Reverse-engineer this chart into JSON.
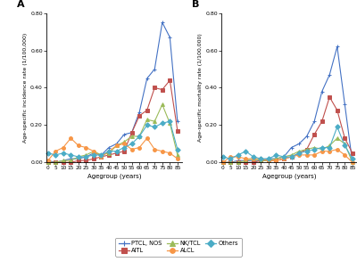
{
  "age_groups": [
    0,
    5,
    10,
    15,
    20,
    25,
    30,
    35,
    40,
    45,
    50,
    55,
    60,
    65,
    70,
    75,
    80,
    85
  ],
  "panel_A": {
    "title": "A",
    "ylabel": "Age-specific incidence rate (1/100,000)",
    "xlabel": "Agegroup (years)",
    "ylim": [
      0,
      0.8
    ],
    "yticks": [
      0.0,
      0.2,
      0.4,
      0.6,
      0.8
    ],
    "PTCL_NOS": [
      0.01,
      0.0,
      0.01,
      0.02,
      0.02,
      0.03,
      0.05,
      0.04,
      0.08,
      0.1,
      0.15,
      0.16,
      0.27,
      0.45,
      0.5,
      0.75,
      0.67,
      0.22
    ],
    "AITL": [
      0.0,
      0.0,
      0.0,
      0.0,
      0.01,
      0.01,
      0.02,
      0.03,
      0.04,
      0.05,
      0.06,
      0.16,
      0.25,
      0.28,
      0.4,
      0.39,
      0.44,
      0.17
    ],
    "NK_TCL": [
      0.0,
      0.0,
      0.01,
      0.01,
      0.03,
      0.04,
      0.06,
      0.04,
      0.05,
      0.09,
      0.11,
      0.14,
      0.14,
      0.23,
      0.22,
      0.31,
      0.21,
      0.04
    ],
    "ALCL": [
      0.01,
      0.06,
      0.08,
      0.13,
      0.09,
      0.08,
      0.06,
      0.03,
      0.06,
      0.09,
      0.1,
      0.07,
      0.08,
      0.13,
      0.07,
      0.06,
      0.05,
      0.02
    ],
    "Others": [
      0.05,
      0.04,
      0.05,
      0.04,
      0.03,
      0.03,
      0.04,
      0.04,
      0.06,
      0.06,
      0.08,
      0.1,
      0.14,
      0.2,
      0.19,
      0.21,
      0.22,
      0.07
    ]
  },
  "panel_B": {
    "title": "B",
    "ylabel": "Age-specific mortality rate (1/100,000)",
    "xlabel": "Agegroup (years)",
    "ylim": [
      0,
      0.8
    ],
    "yticks": [
      0.0,
      0.2,
      0.4,
      0.6,
      0.8
    ],
    "PTCL_NOS": [
      0.0,
      0.0,
      0.01,
      0.01,
      0.01,
      0.01,
      0.02,
      0.02,
      0.03,
      0.08,
      0.1,
      0.14,
      0.22,
      0.38,
      0.47,
      0.62,
      0.31,
      0.0
    ],
    "AITL": [
      0.0,
      0.0,
      0.0,
      0.0,
      0.0,
      0.01,
      0.01,
      0.01,
      0.02,
      0.03,
      0.05,
      0.07,
      0.15,
      0.22,
      0.35,
      0.28,
      0.13,
      0.05
    ],
    "NK_TCL": [
      0.0,
      0.0,
      0.0,
      0.01,
      0.02,
      0.01,
      0.01,
      0.02,
      0.03,
      0.04,
      0.06,
      0.07,
      0.08,
      0.07,
      0.09,
      0.13,
      0.1,
      0.0
    ],
    "ALCL": [
      0.0,
      0.03,
      0.03,
      0.02,
      0.02,
      0.02,
      0.01,
      0.01,
      0.02,
      0.03,
      0.04,
      0.04,
      0.04,
      0.06,
      0.06,
      0.07,
      0.04,
      0.0
    ],
    "Others": [
      0.03,
      0.02,
      0.04,
      0.06,
      0.03,
      0.02,
      0.02,
      0.04,
      0.03,
      0.03,
      0.05,
      0.06,
      0.07,
      0.08,
      0.08,
      0.19,
      0.09,
      0.02
    ]
  },
  "colors": {
    "PTCL_NOS": "#4472C4",
    "AITL": "#C0504D",
    "NK_TCL": "#9BBB59",
    "ALCL": "#F79646",
    "Others": "#4BACC6"
  },
  "markers": {
    "PTCL_NOS": "+",
    "AITL": "s",
    "NK_TCL": "^",
    "ALCL": "o",
    "Others": "D"
  },
  "legend_labels": [
    "PTCL, NOS",
    "AITL",
    "NK/TCL",
    "ALCL",
    "Others"
  ],
  "legend_keys": [
    "PTCL_NOS",
    "AITL",
    "NK_TCL",
    "ALCL",
    "Others"
  ],
  "legend_ncol": 3,
  "fig_bgcolor": "#ffffff"
}
